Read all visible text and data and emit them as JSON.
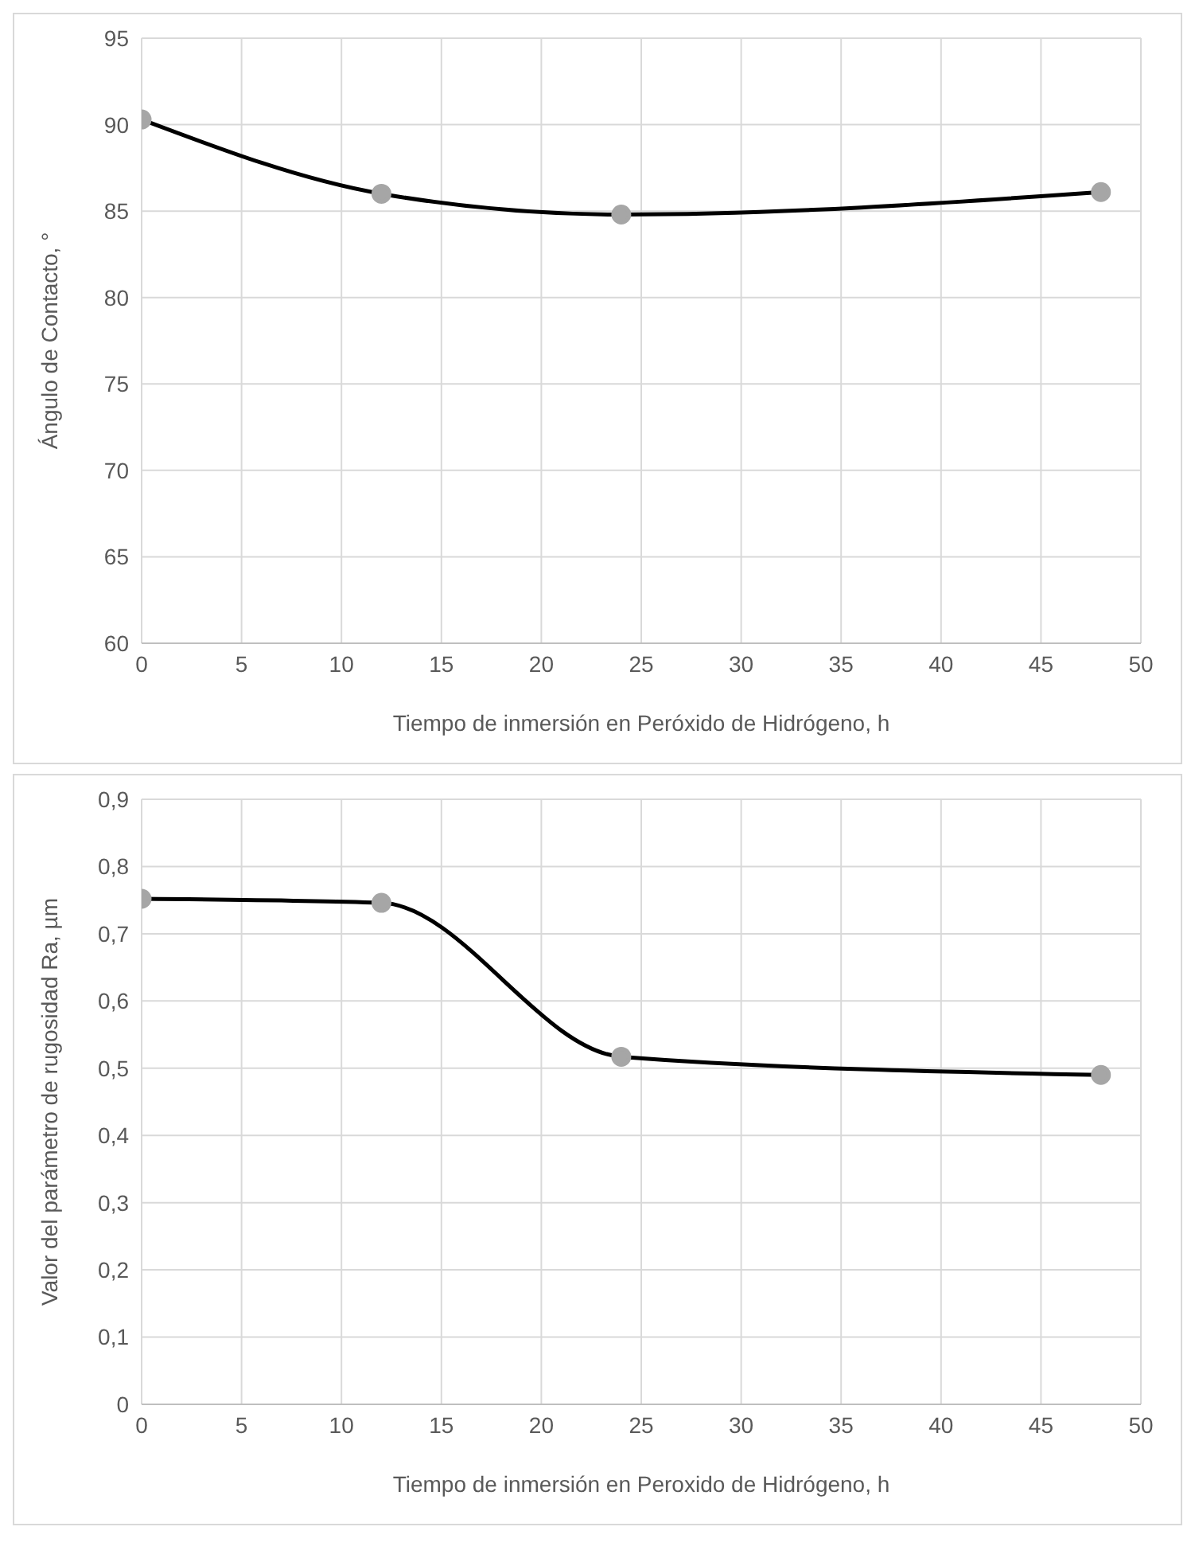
{
  "chart_data": [
    {
      "type": "line",
      "xlabel": "Tiempo de inmersión en Peróxido de Hidrógeno, h",
      "ylabel": "Ángulo de Contacto, °",
      "x": [
        0,
        12,
        24,
        48
      ],
      "series": [
        {
          "color": "#000000",
          "values": [
            90.3,
            86.0,
            84.8,
            86.1
          ]
        }
      ],
      "xlim": [
        0,
        50
      ],
      "xticks": [
        0,
        5,
        10,
        15,
        20,
        25,
        30,
        35,
        40,
        45,
        50
      ],
      "ylim": [
        60,
        95
      ],
      "yticks": [
        60,
        65,
        70,
        75,
        80,
        85,
        90,
        95
      ],
      "grid": true,
      "marker": "circle",
      "legend": false
    },
    {
      "type": "line",
      "xlabel": "Tiempo de inmersión en Peroxido de Hidrógeno, h",
      "ylabel": "Valor del parámetro de rugosidad Ra, µm",
      "x": [
        0,
        12,
        24,
        48
      ],
      "series": [
        {
          "color": "#000000",
          "values": [
            0.752,
            0.746,
            0.517,
            0.49
          ]
        }
      ],
      "xlim": [
        0,
        50
      ],
      "xticks": [
        0,
        5,
        10,
        15,
        20,
        25,
        30,
        35,
        40,
        45,
        50
      ],
      "ylim": [
        0,
        0.9
      ],
      "yticks": [
        0,
        {
          "value": 0.1,
          "label": "0,1"
        },
        {
          "value": 0.2,
          "label": "0,2"
        },
        {
          "value": 0.3,
          "label": "0,3"
        },
        {
          "value": 0.4,
          "label": "0,4"
        },
        {
          "value": 0.5,
          "label": "0,5"
        },
        {
          "value": 0.6,
          "label": "0,6"
        },
        {
          "value": 0.7,
          "label": "0,7"
        },
        {
          "value": 0.8,
          "label": "0,8"
        },
        {
          "value": 0.9,
          "label": "0,9"
        }
      ],
      "grid": true,
      "marker": "circle",
      "legend": false
    }
  ]
}
